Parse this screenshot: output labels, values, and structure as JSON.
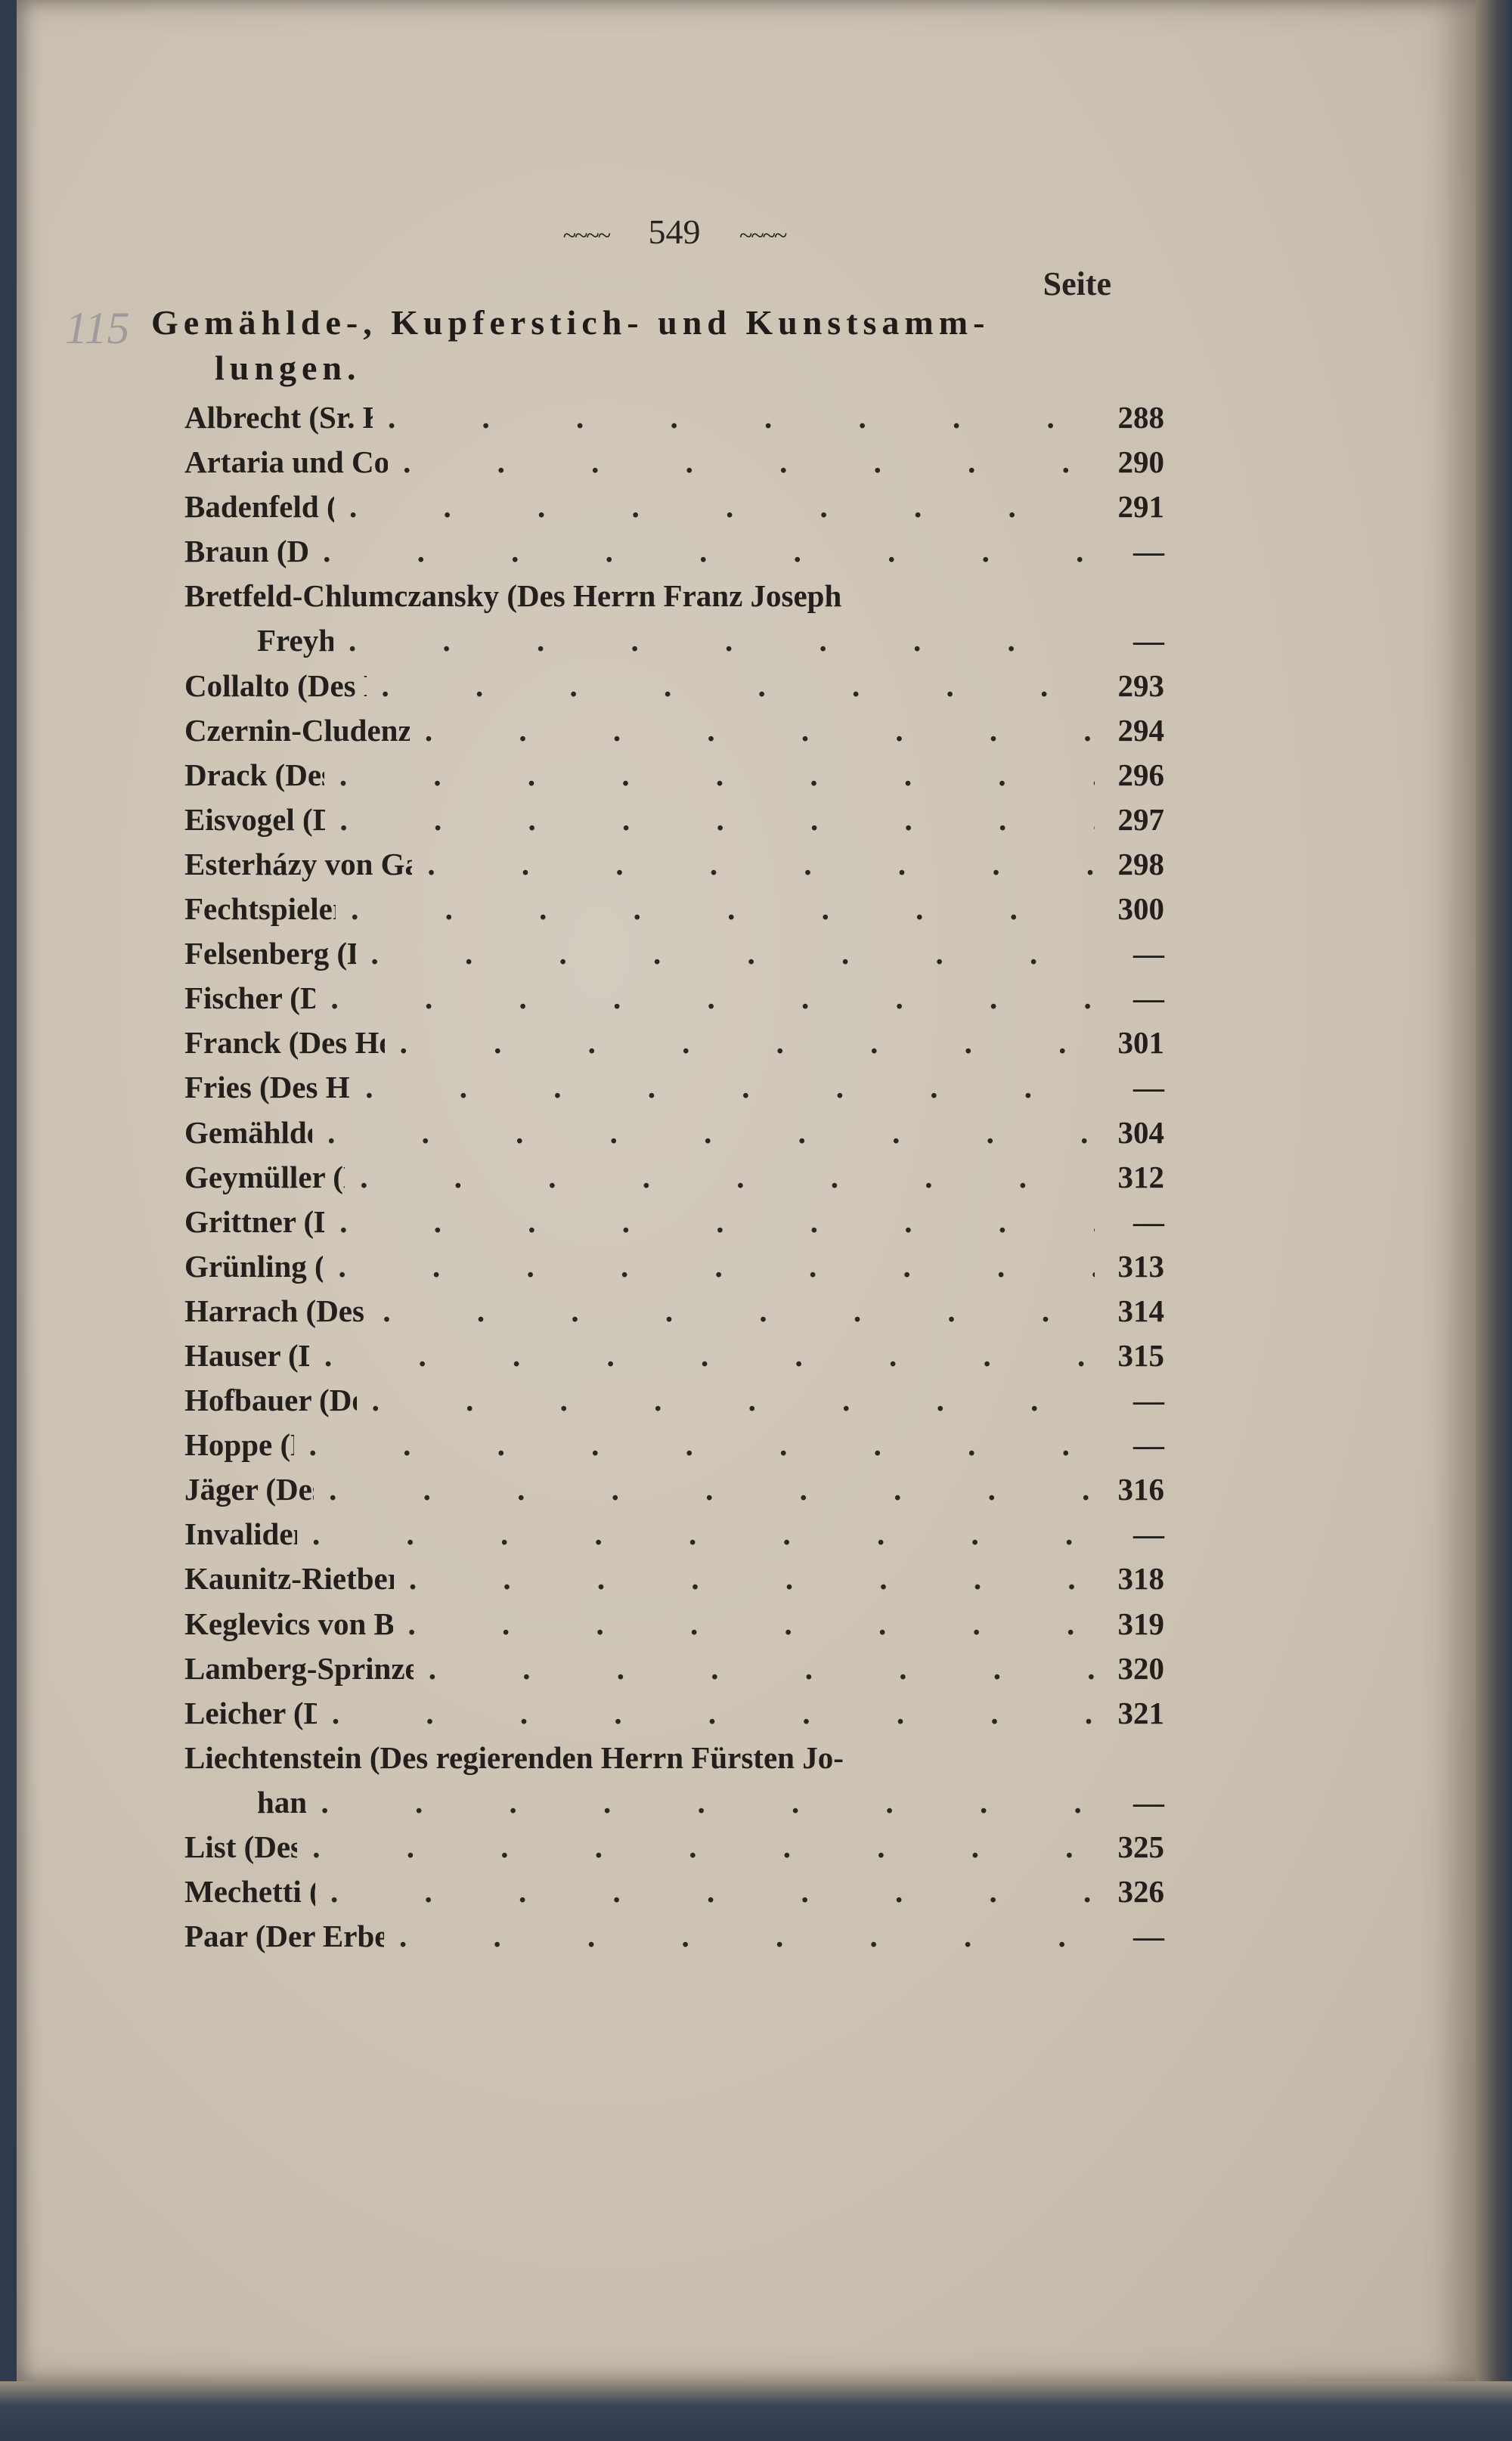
{
  "page_number": "549",
  "header_ornament": "~~~~",
  "column_header": "Seite",
  "margin_note": "115",
  "section": {
    "title_line1": "Gemählde-, Kupferstich- und Kunstsamm-",
    "title_line2": "lungen."
  },
  "entries": [
    {
      "name": "Albrecht (Sr. Königl. Hoheit des Herzoges)",
      "page": "288"
    },
    {
      "name": "Artaria und Compagnie (Der Herren Dominik)",
      "page": "290"
    },
    {
      "name": "Badenfeld (Des Herrn Carl von)",
      "page": "291"
    },
    {
      "name": "Braun (Des Herrn Adam)",
      "page": "—"
    },
    {
      "name": "Bretfeld-Chlumczansky (Des Herrn Franz Joseph",
      "page": ""
    },
    {
      "name": "Freyherren von)",
      "page": "—",
      "continuation": true
    },
    {
      "name": "Collalto (Des Herrn Grafen Eduard von)",
      "page": "293"
    },
    {
      "name": "Czernin-Cludenzith (Des Herrn Grafen Rudolph von)",
      "page": "294"
    },
    {
      "name": "Drack (Des Herrn Johann B.)",
      "page": "296"
    },
    {
      "name": "Eisvogel (Des Herrn Leopold)",
      "page": "297"
    },
    {
      "name": "Esterházy von Galantha (Des Herrn Fürsten Nikolaus)",
      "page": "298"
    },
    {
      "name": "Fechtspieler (Des Herrn Martin)",
      "page": "300"
    },
    {
      "name": "Felsenberg (Des Herrn Georg Joseph)",
      "page": "—"
    },
    {
      "name": "Fischer (Des Herrn Joseph)",
      "page": "—"
    },
    {
      "name": "Franck (Des Herrn Johann Jacob Ritters von)",
      "page": "301"
    },
    {
      "name": "Fries (Des Herrn Grafen Moriz von)",
      "page": "—"
    },
    {
      "name": "Gemählde-Gallerie (K. K.)",
      "page": "304"
    },
    {
      "name": "Geymüller (Des Herrn Ritters von)",
      "page": "312"
    },
    {
      "name": "Grittner (Des Herrn Michael)",
      "page": "—"
    },
    {
      "name": "Grünling (Des Herrn Joseph)",
      "page": "313"
    },
    {
      "name": "Harrach (Des Herrn Johann Grafen von)",
      "page": "314"
    },
    {
      "name": "Hauser (Des Herrn Aloys)",
      "page": "315"
    },
    {
      "name": "Hofbauer (Des Herrn Johann Caspar)",
      "page": "—"
    },
    {
      "name": "Hoppe (Der Frau von)",
      "page": "—"
    },
    {
      "name": "Jäger (Des Herrn Andreas)",
      "page": "316"
    },
    {
      "name": "Invaliden-Haus (K. K.)",
      "page": "—"
    },
    {
      "name": "Kaunitz-Rietberg (Des Herrn Aloys Fürsten von)",
      "page": "318"
    },
    {
      "name": "Keglevics von Buzin (Des Herrn Johann Grafen)",
      "page": "319"
    },
    {
      "name": "Lamberg-Sprinzenstein (Des Herrn Grafen Anton von)",
      "page": "320"
    },
    {
      "name": "Leicher (Des Herrn Joseph)",
      "page": "321"
    },
    {
      "name": "Liechtenstein (Des regierenden Herrn Fürsten Jo-",
      "page": ""
    },
    {
      "name": "hann von)",
      "page": "—",
      "continuation": true
    },
    {
      "name": "List (Des Herrn Franz)",
      "page": "325"
    },
    {
      "name": "Mechetti (Des Herrn Peter)",
      "page": "326"
    },
    {
      "name": "Paar (Der Erben des Herrn Fürsten Carl von)",
      "page": "—"
    }
  ]
}
